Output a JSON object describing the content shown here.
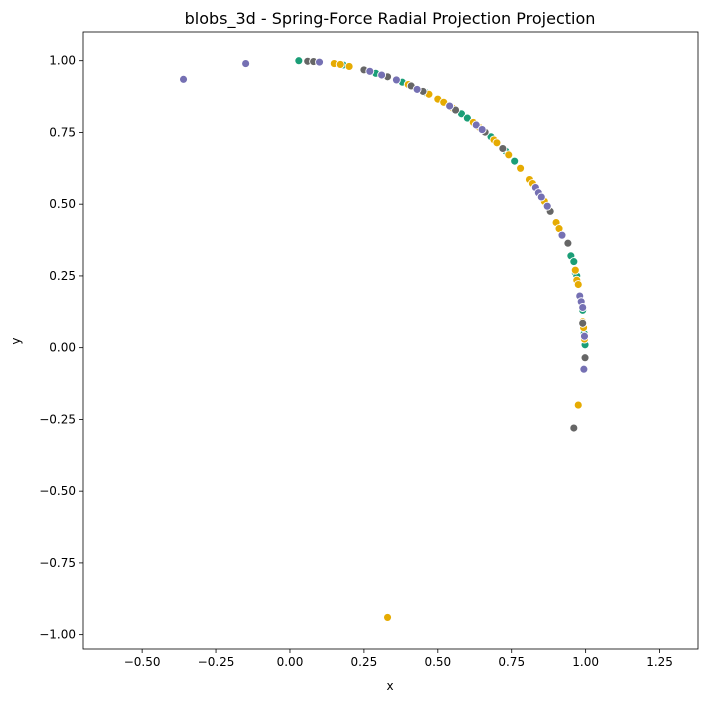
{
  "chart_data": {
    "type": "scatter",
    "title": "blobs_3d - Spring-Force Radial Projection Projection",
    "xlabel": "x",
    "ylabel": "y",
    "xlim": [
      -0.7,
      1.38
    ],
    "ylim": [
      -1.05,
      1.1
    ],
    "xticks": [
      -0.5,
      -0.25,
      0.0,
      0.25,
      0.5,
      0.75,
      1.0,
      1.25
    ],
    "xtick_labels": [
      "−0.50",
      "−0.25",
      "0.00",
      "0.25",
      "0.50",
      "0.75",
      "1.00",
      "1.25"
    ],
    "yticks": [
      1.0,
      0.75,
      0.5,
      0.25,
      0.0,
      -0.25,
      -0.5,
      -0.75,
      -1.0
    ],
    "ytick_labels": [
      "1.00",
      "0.75",
      "0.50",
      "0.25",
      "0.00",
      "−0.25",
      "−0.50",
      "−0.75",
      "−1.00"
    ],
    "grid": false,
    "legend": "none",
    "series": [
      {
        "color": "#1b9e77",
        "points": [
          [
            0.03,
            1.0
          ],
          [
            0.18,
            0.985
          ],
          [
            0.29,
            0.956
          ],
          [
            0.38,
            0.925
          ],
          [
            0.46,
            0.888
          ],
          [
            0.58,
            0.815
          ],
          [
            0.6,
            0.8
          ],
          [
            0.68,
            0.735
          ],
          [
            0.73,
            0.685
          ],
          [
            0.76,
            0.65
          ],
          [
            0.95,
            0.32
          ],
          [
            0.96,
            0.3
          ],
          [
            0.965,
            0.26
          ],
          [
            0.97,
            0.25
          ],
          [
            0.99,
            0.13
          ],
          [
            0.995,
            0.05
          ],
          [
            0.998,
            0.01
          ]
        ]
      },
      {
        "color": "#e6ab02",
        "points": [
          [
            0.15,
            0.99
          ],
          [
            0.17,
            0.987
          ],
          [
            0.2,
            0.98
          ],
          [
            0.4,
            0.917
          ],
          [
            0.47,
            0.883
          ],
          [
            0.5,
            0.866
          ],
          [
            0.52,
            0.855
          ],
          [
            0.55,
            0.835
          ],
          [
            0.62,
            0.785
          ],
          [
            0.64,
            0.768
          ],
          [
            0.69,
            0.724
          ],
          [
            0.7,
            0.714
          ],
          [
            0.74,
            0.672
          ],
          [
            0.78,
            0.625
          ],
          [
            0.81,
            0.586
          ],
          [
            0.82,
            0.572
          ],
          [
            0.86,
            0.51
          ],
          [
            0.88,
            0.475
          ],
          [
            0.9,
            0.436
          ],
          [
            0.91,
            0.415
          ],
          [
            0.965,
            0.27
          ],
          [
            0.97,
            0.235
          ],
          [
            0.975,
            0.22
          ],
          [
            0.99,
            0.09
          ],
          [
            0.993,
            0.07
          ],
          [
            0.996,
            0.03
          ],
          [
            0.975,
            -0.2
          ],
          [
            0.33,
            -0.94
          ]
        ]
      },
      {
        "color": "#666666",
        "points": [
          [
            0.06,
            0.998
          ],
          [
            0.08,
            0.997
          ],
          [
            0.25,
            0.968
          ],
          [
            0.33,
            0.944
          ],
          [
            0.41,
            0.912
          ],
          [
            0.45,
            0.893
          ],
          [
            0.56,
            0.828
          ],
          [
            0.66,
            0.751
          ],
          [
            0.72,
            0.694
          ],
          [
            0.88,
            0.475
          ],
          [
            0.94,
            0.364
          ],
          [
            0.99,
            0.085
          ],
          [
            0.998,
            -0.035
          ],
          [
            0.96,
            -0.28
          ]
        ]
      },
      {
        "color": "#7570b3",
        "points": [
          [
            -0.36,
            0.935
          ],
          [
            -0.15,
            0.99
          ],
          [
            0.1,
            0.995
          ],
          [
            0.27,
            0.963
          ],
          [
            0.31,
            0.95
          ],
          [
            0.36,
            0.933
          ],
          [
            0.43,
            0.9
          ],
          [
            0.54,
            0.842
          ],
          [
            0.63,
            0.776
          ],
          [
            0.65,
            0.76
          ],
          [
            0.83,
            0.558
          ],
          [
            0.84,
            0.54
          ],
          [
            0.85,
            0.525
          ],
          [
            0.87,
            0.493
          ],
          [
            0.92,
            0.392
          ],
          [
            0.98,
            0.18
          ],
          [
            0.985,
            0.16
          ],
          [
            0.99,
            0.14
          ],
          [
            0.996,
            0.04
          ],
          [
            0.994,
            -0.075
          ]
        ]
      }
    ]
  }
}
